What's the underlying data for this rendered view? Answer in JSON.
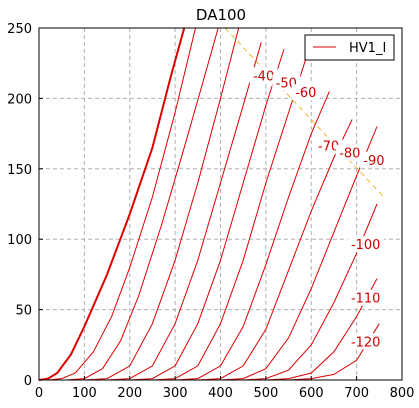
{
  "chart_data": {
    "type": "line",
    "title": "DA100",
    "xlabel": "",
    "ylabel": "",
    "xlim": [
      0,
      800
    ],
    "ylim": [
      0,
      250
    ],
    "xticks": [
      0,
      100,
      200,
      300,
      400,
      500,
      600,
      700,
      800
    ],
    "yticks": [
      0,
      50,
      100,
      150,
      200,
      250
    ],
    "grid": true,
    "legend": {
      "position": "top-right",
      "entries": [
        "HV1_I"
      ]
    },
    "colors": {
      "curves": "#dd0000",
      "load_line": "#f0b429",
      "grid": "#b0b0b0"
    },
    "load_line": {
      "style": "dashed",
      "points": [
        [
          410,
          250
        ],
        [
          760,
          130
        ]
      ]
    },
    "series": [
      {
        "name": "HV1_I",
        "points": [
          [
            0,
            0
          ],
          [
            20,
            1
          ],
          [
            40,
            5
          ],
          [
            70,
            18
          ],
          [
            100,
            38
          ],
          [
            150,
            75
          ],
          [
            200,
            118
          ],
          [
            250,
            165
          ],
          [
            290,
            215
          ],
          [
            320,
            250
          ]
        ]
      },
      {
        "label": "",
        "points": [
          [
            20,
            0
          ],
          [
            50,
            1
          ],
          [
            80,
            5
          ],
          [
            120,
            20
          ],
          [
            160,
            45
          ],
          [
            200,
            80
          ],
          [
            250,
            130
          ],
          [
            300,
            190
          ],
          [
            345,
            250
          ]
        ]
      },
      {
        "label": "",
        "points": [
          [
            60,
            0
          ],
          [
            100,
            1
          ],
          [
            140,
            8
          ],
          [
            180,
            28
          ],
          [
            220,
            60
          ],
          [
            270,
            110
          ],
          [
            320,
            165
          ],
          [
            360,
            210
          ],
          [
            395,
            250
          ]
        ]
      },
      {
        "label": "",
        "points": [
          [
            100,
            0
          ],
          [
            150,
            1
          ],
          [
            200,
            10
          ],
          [
            250,
            40
          ],
          [
            300,
            85
          ],
          [
            350,
            140
          ],
          [
            400,
            200
          ],
          [
            440,
            250
          ]
        ]
      },
      {
        "label": "-40",
        "points": [
          [
            150,
            0
          ],
          [
            200,
            1
          ],
          [
            250,
            10
          ],
          [
            300,
            40
          ],
          [
            350,
            85
          ],
          [
            400,
            140
          ],
          [
            450,
            195
          ],
          [
            490,
            240
          ]
        ]
      },
      {
        "label": "-50",
        "points": [
          [
            200,
            0
          ],
          [
            250,
            1
          ],
          [
            300,
            10
          ],
          [
            350,
            40
          ],
          [
            400,
            85
          ],
          [
            450,
            140
          ],
          [
            500,
            195
          ],
          [
            540,
            235
          ]
        ]
      },
      {
        "label": "-60",
        "points": [
          [
            250,
            0
          ],
          [
            300,
            1
          ],
          [
            350,
            10
          ],
          [
            400,
            40
          ],
          [
            450,
            85
          ],
          [
            500,
            140
          ],
          [
            550,
            190
          ],
          [
            590,
            230
          ]
        ]
      },
      {
        "label": "-70",
        "points": [
          [
            300,
            0
          ],
          [
            350,
            1
          ],
          [
            400,
            10
          ],
          [
            450,
            38
          ],
          [
            500,
            82
          ],
          [
            550,
            130
          ],
          [
            600,
            175
          ],
          [
            640,
            205
          ]
        ]
      },
      {
        "label": "-80",
        "points": [
          [
            350,
            0
          ],
          [
            400,
            1
          ],
          [
            450,
            10
          ],
          [
            500,
            36
          ],
          [
            550,
            78
          ],
          [
            600,
            120
          ],
          [
            650,
            158
          ],
          [
            690,
            185
          ]
        ]
      },
      {
        "label": "-90",
        "points": [
          [
            400,
            0
          ],
          [
            450,
            1
          ],
          [
            500,
            8
          ],
          [
            550,
            30
          ],
          [
            600,
            65
          ],
          [
            650,
            105
          ],
          [
            700,
            145
          ],
          [
            745,
            180
          ]
        ]
      },
      {
        "label": "-100",
        "points": [
          [
            450,
            0
          ],
          [
            500,
            1
          ],
          [
            550,
            7
          ],
          [
            600,
            25
          ],
          [
            650,
            55
          ],
          [
            700,
            90
          ],
          [
            745,
            125
          ]
        ]
      },
      {
        "label": "-110",
        "points": [
          [
            500,
            0
          ],
          [
            550,
            1
          ],
          [
            600,
            5
          ],
          [
            650,
            20
          ],
          [
            700,
            45
          ],
          [
            745,
            72
          ]
        ]
      },
      {
        "label": "-120",
        "points": [
          [
            550,
            0
          ],
          [
            600,
            1
          ],
          [
            650,
            4
          ],
          [
            700,
            14
          ],
          [
            750,
            40
          ]
        ]
      }
    ],
    "curve_labels": [
      {
        "text": "-40",
        "x": 495,
        "y": 215
      },
      {
        "text": "-50",
        "x": 545,
        "y": 210
      },
      {
        "text": "-60",
        "x": 588,
        "y": 203
      },
      {
        "text": "-70",
        "x": 638,
        "y": 165
      },
      {
        "text": "-80",
        "x": 685,
        "y": 160
      },
      {
        "text": "-90",
        "x": 738,
        "y": 155
      },
      {
        "text": "-100",
        "x": 720,
        "y": 95
      },
      {
        "text": "-110",
        "x": 720,
        "y": 57
      },
      {
        "text": "-120",
        "x": 720,
        "y": 26
      }
    ]
  }
}
